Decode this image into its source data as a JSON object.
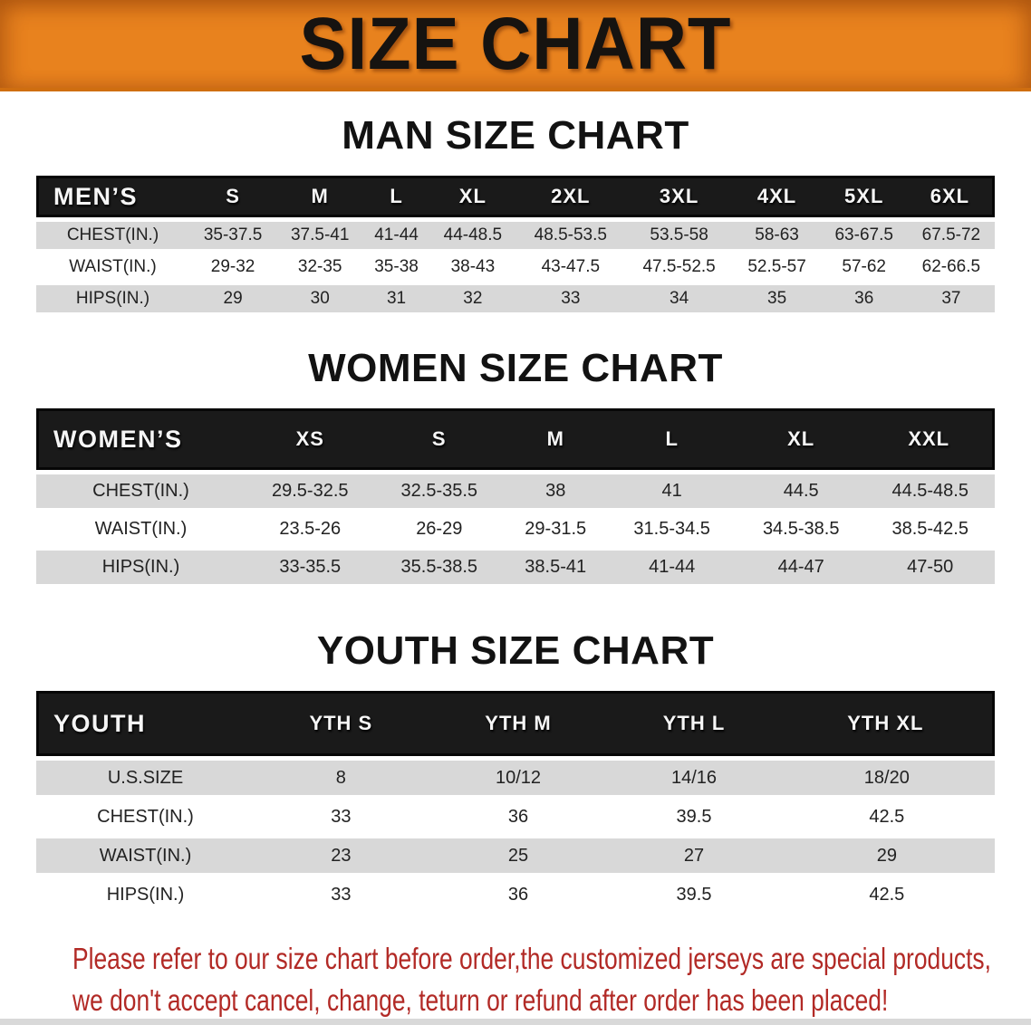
{
  "banner": {
    "title": "SIZE CHART"
  },
  "sections": [
    {
      "id": "men",
      "heading": "MAN SIZE CHART",
      "group_label": "MEN’S",
      "columns": [
        "S",
        "M",
        "L",
        "XL",
        "2XL",
        "3XL",
        "4XL",
        "5XL",
        "6XL"
      ],
      "rows": [
        {
          "label": "CHEST(IN.)",
          "values": [
            "35-37.5",
            "37.5-41",
            "41-44",
            "44-48.5",
            "48.5-53.5",
            "53.5-58",
            "58-63",
            "63-67.5",
            "67.5-72"
          ]
        },
        {
          "label": "WAIST(IN.)",
          "values": [
            "29-32",
            "32-35",
            "35-38",
            "38-43",
            "43-47.5",
            "47.5-52.5",
            "52.5-57",
            "57-62",
            "62-66.5"
          ]
        },
        {
          "label": "HIPS(IN.)",
          "values": [
            "29",
            "30",
            "31",
            "32",
            "33",
            "34",
            "35",
            "36",
            "37"
          ]
        }
      ]
    },
    {
      "id": "women",
      "heading": "WOMEN SIZE CHART",
      "group_label": "WOMEN’S",
      "columns": [
        "XS",
        "S",
        "M",
        "L",
        "XL",
        "XXL"
      ],
      "rows": [
        {
          "label": "CHEST(IN.)",
          "values": [
            "29.5-32.5",
            "32.5-35.5",
            "38",
            "41",
            "44.5",
            "44.5-48.5"
          ]
        },
        {
          "label": "WAIST(IN.)",
          "values": [
            "23.5-26",
            "26-29",
            "29-31.5",
            "31.5-34.5",
            "34.5-38.5",
            "38.5-42.5"
          ]
        },
        {
          "label": "HIPS(IN.)",
          "values": [
            "33-35.5",
            "35.5-38.5",
            "38.5-41",
            "41-44",
            "44-47",
            "47-50"
          ]
        }
      ]
    },
    {
      "id": "youth",
      "heading": "YOUTH SIZE CHART",
      "group_label": "YOUTH",
      "columns": [
        "YTH S",
        "YTH M",
        "YTH L",
        "YTH XL"
      ],
      "rows": [
        {
          "label": "U.S.SIZE",
          "values": [
            "8",
            "10/12",
            "14/16",
            "18/20"
          ]
        },
        {
          "label": "CHEST(IN.)",
          "values": [
            "33",
            "36",
            "39.5",
            "42.5"
          ]
        },
        {
          "label": "WAIST(IN.)",
          "values": [
            "23",
            "25",
            "27",
            "29"
          ]
        },
        {
          "label": "HIPS(IN.)",
          "values": [
            "33",
            "36",
            "39.5",
            "42.5"
          ]
        }
      ]
    }
  ],
  "footer": {
    "line1": "Please refer to our size chart before order,the customized jerseys are special products,",
    "line2": "we don't accept cancel, change, teturn or refund after order has been placed!"
  },
  "colors": {
    "banner_orange": "#E8821E",
    "header_bar_black": "#1a1a1a",
    "row_gray": "#d8d8d8",
    "footer_red": "#B22A26"
  }
}
